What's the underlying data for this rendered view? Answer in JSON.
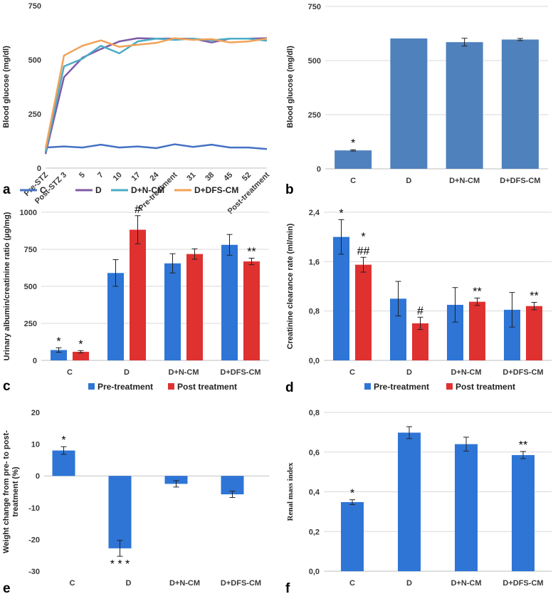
{
  "panels": {
    "a": {
      "letter": "a",
      "chart_data": {
        "type": "line",
        "title": "",
        "xlabel": "",
        "ylabel": "Blood glucose (mg/dl)",
        "ylim": [
          0,
          750
        ],
        "yticks": [
          "0",
          "250",
          "500",
          "750"
        ],
        "categories": [
          "Pre-STZ",
          "Post-STZ 3",
          "5",
          "7",
          "10",
          "17",
          "24",
          "Pre-treatment",
          "31",
          "38",
          "45",
          "52",
          "Post-treatment"
        ],
        "series": [
          {
            "name": "C",
            "color": "#4472c4",
            "values": [
              95,
              100,
              95,
              108,
              95,
              100,
              92,
              110,
              98,
              108,
              95,
              95,
              88
            ]
          },
          {
            "name": "D",
            "color": "#7e5ba6",
            "values": [
              65,
              420,
              510,
              550,
              585,
              600,
              598,
              598,
              598,
              580,
              598,
              598,
              600
            ]
          },
          {
            "name": "D+N-CM",
            "color": "#4bacc6",
            "values": [
              75,
              470,
              505,
              565,
              530,
              585,
              598,
              592,
              598,
              590,
              598,
              598,
              588
            ]
          },
          {
            "name": "D+DFS-CM",
            "color": "#f0a35a",
            "values": [
              90,
              520,
              565,
              590,
              560,
              570,
              578,
              600,
              592,
              596,
              580,
              585,
              598
            ]
          }
        ],
        "legend": [
          "C",
          "D",
          "D+N-CM",
          "D+DFS-CM"
        ]
      }
    },
    "b": {
      "letter": "b",
      "chart_data": {
        "type": "bar",
        "ylabel": "Blood glucose (mg/dl)",
        "ylim": [
          0,
          750
        ],
        "yticks": [
          "0",
          "250",
          "500",
          "750"
        ],
        "categories": [
          "C",
          "D",
          "D+N-CM",
          "D+DFS-CM"
        ],
        "values": [
          85,
          602,
          585,
          597
        ],
        "errors": [
          3,
          0,
          18,
          5
        ],
        "color": "#4f81bd",
        "annotations": [
          "*",
          "",
          "",
          ""
        ]
      }
    },
    "c": {
      "letter": "c",
      "chart_data": {
        "type": "bar",
        "ylabel": "Urinary albumin/creatinine ratio (µg/mg)",
        "ylim": [
          0,
          1000
        ],
        "yticks": [
          "0",
          "250",
          "500",
          "750",
          "1000"
        ],
        "categories": [
          "C",
          "D",
          "D+N-CM",
          "D+DFS-CM"
        ],
        "series": [
          {
            "name": "Pre-treatment",
            "color": "#2e75d6",
            "values": [
              70,
              590,
              655,
              780
            ],
            "errors": [
              15,
              90,
              65,
              70
            ],
            "annotations": [
              "*",
              "",
              "",
              ""
            ]
          },
          {
            "name": "Post treatment",
            "color": "#e03131",
            "values": [
              58,
              882,
              718,
              668
            ],
            "errors": [
              8,
              95,
              35,
              22
            ],
            "annotations": [
              "*",
              "#",
              "",
              "**"
            ]
          }
        ],
        "legend": [
          "Pre-treatment",
          "Post treatment"
        ]
      }
    },
    "d": {
      "letter": "d",
      "chart_data": {
        "type": "bar",
        "ylabel": "Creatinine clearance rate (ml/min)",
        "ylim": [
          0,
          2.4
        ],
        "yticks": [
          "0,0",
          "0,8",
          "1,6",
          "2,4"
        ],
        "categories": [
          "C",
          "D",
          "D+N-CM",
          "D+DFS-CM"
        ],
        "series": [
          {
            "name": "Pre-treatment",
            "color": "#2e75d6",
            "values": [
              2.0,
              1.0,
              0.9,
              0.82
            ],
            "errors": [
              0.28,
              0.28,
              0.28,
              0.28
            ],
            "annotations": [
              "*",
              "",
              "",
              ""
            ]
          },
          {
            "name": "Post treatment",
            "color": "#e03131",
            "values": [
              1.55,
              0.6,
              0.95,
              0.88
            ],
            "errors": [
              0.12,
              0.1,
              0.06,
              0.06
            ],
            "annotations": [
              "*|##",
              "#",
              "**",
              "**"
            ]
          }
        ],
        "legend": [
          "Pre-treatment",
          "Post treatment"
        ]
      }
    },
    "e": {
      "letter": "e",
      "chart_data": {
        "type": "bar",
        "ylabel": "Weight change from pre- to post-treatment (%)",
        "ylabel_lines": [
          "Weight change from pre- to post-",
          "treatment (%)"
        ],
        "ylim": [
          -30,
          20
        ],
        "yticks": [
          "-30",
          "-20",
          "-10",
          "0",
          "10",
          "20"
        ],
        "categories": [
          "C",
          "D",
          "D+N-CM",
          "D+DFS-CM"
        ],
        "values": [
          8,
          -22.8,
          -2.5,
          -5.8
        ],
        "errors": [
          1.2,
          2.5,
          1.0,
          1.0
        ],
        "color": "#2e75d6",
        "annotations": [
          "*",
          "* * *",
          "",
          ""
        ]
      }
    },
    "f": {
      "letter": "f",
      "chart_data": {
        "type": "bar",
        "ylabel": "Renal mass index",
        "ylim": [
          0,
          0.8
        ],
        "yticks": [
          "0,0",
          "0,2",
          "0,4",
          "0,6",
          "0,8"
        ],
        "categories": [
          "C",
          "D",
          "D+N-CM",
          "D+DFS-CM"
        ],
        "values": [
          0.348,
          0.698,
          0.64,
          0.585
        ],
        "errors": [
          0.012,
          0.03,
          0.035,
          0.018
        ],
        "color": "#2e75d6",
        "annotations": [
          "*",
          "",
          "",
          "**"
        ]
      }
    }
  }
}
